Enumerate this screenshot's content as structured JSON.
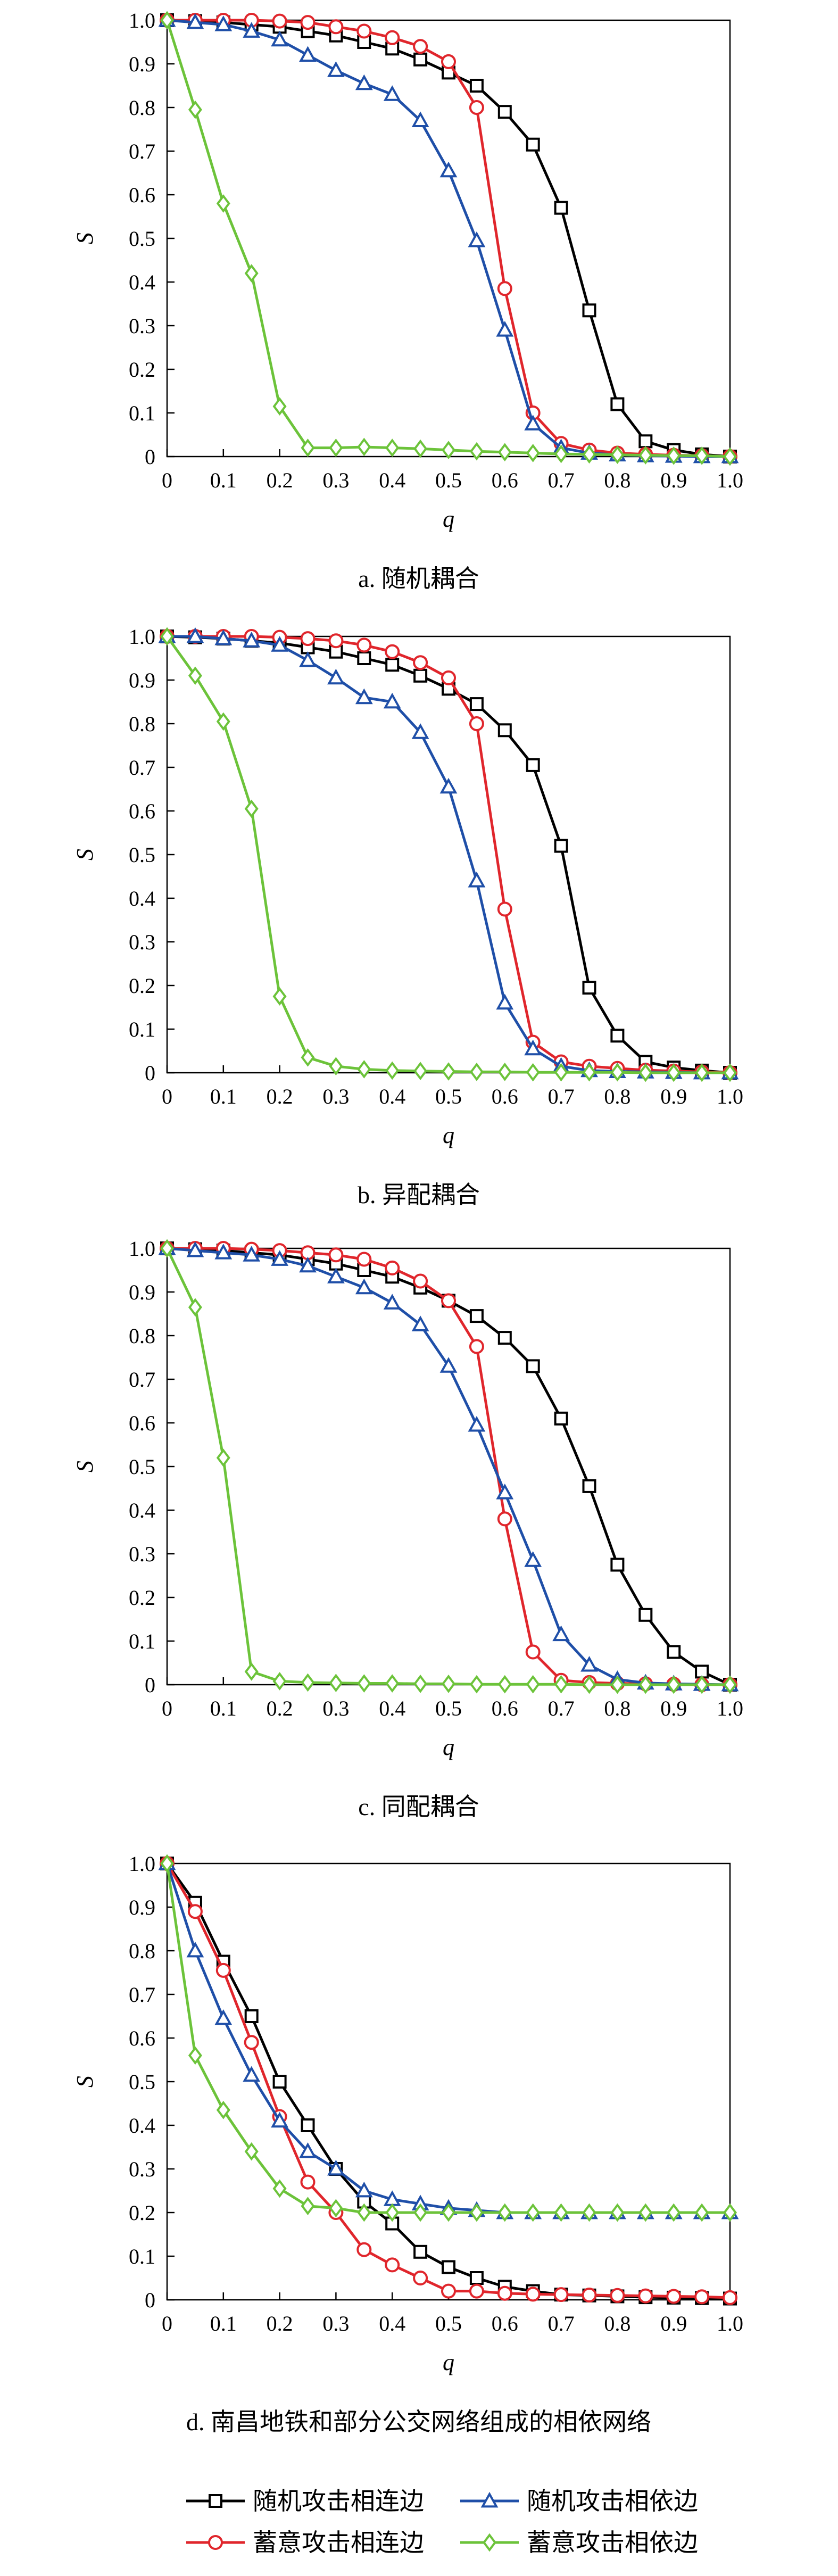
{
  "legend": {
    "entries": [
      {
        "label": "随机攻击相连边",
        "color": "#000000",
        "marker": "square"
      },
      {
        "label": "随机攻击相依边",
        "color": "#1f4fa8",
        "marker": "triangle"
      },
      {
        "label": "蓄意攻击相连边",
        "color": "#e0262c",
        "marker": "circle"
      },
      {
        "label": "蓄意攻击相依边",
        "color": "#6cc33a",
        "marker": "diamond"
      }
    ],
    "placement": "bottom-center"
  },
  "chart_data": [
    {
      "type": "line",
      "caption": "a. 随机耦合",
      "xlabel": "q",
      "ylabel": "S",
      "xlim": [
        0,
        1
      ],
      "ylim": [
        0,
        1
      ],
      "xticks": [
        "0",
        "0.1",
        "0.2",
        "0.3",
        "0.4",
        "0.5",
        "0.6",
        "0.7",
        "0.8",
        "0.9",
        "1.0"
      ],
      "yticks": [
        "0",
        "0.1",
        "0.2",
        "0.3",
        "0.4",
        "0.5",
        "0.6",
        "0.7",
        "0.8",
        "0.9",
        "1.0"
      ],
      "x": [
        0,
        0.05,
        0.1,
        0.15,
        0.2,
        0.25,
        0.3,
        0.35,
        0.4,
        0.45,
        0.5,
        0.55,
        0.6,
        0.65,
        0.7,
        0.75,
        0.8,
        0.85,
        0.9,
        0.95,
        1.0
      ],
      "series": [
        {
          "name": "随机攻击相连边",
          "values": [
            1.0,
            0.998,
            0.995,
            0.99,
            0.985,
            0.975,
            0.965,
            0.95,
            0.935,
            0.91,
            0.88,
            0.85,
            0.79,
            0.715,
            0.57,
            0.335,
            0.12,
            0.035,
            0.015,
            0.005,
            0.0
          ]
        },
        {
          "name": "蓄意攻击相连边",
          "values": [
            1.0,
            1.0,
            1.0,
            1.0,
            0.998,
            0.995,
            0.985,
            0.975,
            0.96,
            0.94,
            0.905,
            0.8,
            0.385,
            0.1,
            0.03,
            0.015,
            0.008,
            0.005,
            0.003,
            0.002,
            0.0
          ]
        },
        {
          "name": "随机攻击相依边",
          "values": [
            1.0,
            0.995,
            0.99,
            0.975,
            0.955,
            0.92,
            0.885,
            0.855,
            0.83,
            0.77,
            0.655,
            0.495,
            0.29,
            0.075,
            0.02,
            0.008,
            0.004,
            0.002,
            0.001,
            0.0,
            0.0
          ]
        },
        {
          "name": "蓄意攻击相依边",
          "values": [
            1.0,
            0.795,
            0.58,
            0.42,
            0.115,
            0.02,
            0.02,
            0.022,
            0.02,
            0.018,
            0.015,
            0.012,
            0.01,
            0.008,
            0.006,
            0.005,
            0.004,
            0.003,
            0.002,
            0.002,
            0.0
          ]
        }
      ]
    },
    {
      "type": "line",
      "caption": "b. 异配耦合",
      "xlabel": "q",
      "ylabel": "S",
      "xlim": [
        0,
        1
      ],
      "ylim": [
        0,
        1
      ],
      "xticks": [
        "0",
        "0.1",
        "0.2",
        "0.3",
        "0.4",
        "0.5",
        "0.6",
        "0.7",
        "0.8",
        "0.9",
        "1.0"
      ],
      "yticks": [
        "0",
        "0.1",
        "0.2",
        "0.3",
        "0.4",
        "0.5",
        "0.6",
        "0.7",
        "0.8",
        "0.9",
        "1.0"
      ],
      "x": [
        0,
        0.05,
        0.1,
        0.15,
        0.2,
        0.25,
        0.3,
        0.35,
        0.4,
        0.45,
        0.5,
        0.55,
        0.6,
        0.65,
        0.7,
        0.75,
        0.8,
        0.85,
        0.9,
        0.95,
        1.0
      ],
      "series": [
        {
          "name": "随机攻击相连边",
          "values": [
            1.0,
            0.998,
            0.995,
            0.99,
            0.985,
            0.975,
            0.965,
            0.95,
            0.935,
            0.91,
            0.88,
            0.845,
            0.785,
            0.705,
            0.52,
            0.195,
            0.085,
            0.025,
            0.012,
            0.005,
            0.0
          ]
        },
        {
          "name": "蓄意攻击相连边",
          "values": [
            1.0,
            1.0,
            1.0,
            1.0,
            0.998,
            0.995,
            0.99,
            0.98,
            0.965,
            0.94,
            0.905,
            0.8,
            0.375,
            0.07,
            0.025,
            0.015,
            0.01,
            0.006,
            0.004,
            0.002,
            0.0
          ]
        },
        {
          "name": "随机攻击相依边",
          "values": [
            1.0,
            1.0,
            0.995,
            0.99,
            0.98,
            0.945,
            0.905,
            0.86,
            0.85,
            0.78,
            0.655,
            0.44,
            0.16,
            0.055,
            0.015,
            0.005,
            0.003,
            0.002,
            0.001,
            0.0,
            0.0
          ]
        },
        {
          "name": "蓄意攻击相依边",
          "values": [
            1.0,
            0.91,
            0.805,
            0.605,
            0.175,
            0.035,
            0.015,
            0.008,
            0.005,
            0.004,
            0.003,
            0.002,
            0.002,
            0.001,
            0.001,
            0.001,
            0.001,
            0.0,
            0.0,
            0.0,
            0.0
          ]
        }
      ]
    },
    {
      "type": "line",
      "caption": "c. 同配耦合",
      "xlabel": "q",
      "ylabel": "S",
      "xlim": [
        0,
        1
      ],
      "ylim": [
        0,
        1
      ],
      "xticks": [
        "0",
        "0.1",
        "0.2",
        "0.3",
        "0.4",
        "0.5",
        "0.6",
        "0.7",
        "0.8",
        "0.9",
        "1.0"
      ],
      "yticks": [
        "0",
        "0.1",
        "0.2",
        "0.3",
        "0.4",
        "0.5",
        "0.6",
        "0.7",
        "0.8",
        "0.9",
        "1.0"
      ],
      "x": [
        0,
        0.05,
        0.1,
        0.15,
        0.2,
        0.25,
        0.3,
        0.35,
        0.4,
        0.45,
        0.5,
        0.55,
        0.6,
        0.65,
        0.7,
        0.75,
        0.8,
        0.85,
        0.9,
        0.95,
        1.0
      ],
      "series": [
        {
          "name": "随机攻击相连边",
          "values": [
            1.0,
            0.998,
            0.995,
            0.99,
            0.985,
            0.975,
            0.965,
            0.95,
            0.935,
            0.91,
            0.88,
            0.845,
            0.795,
            0.73,
            0.61,
            0.455,
            0.275,
            0.16,
            0.075,
            0.03,
            0.0
          ]
        },
        {
          "name": "蓄意攻击相连边",
          "values": [
            1.0,
            1.0,
            1.0,
            0.998,
            0.995,
            0.99,
            0.985,
            0.975,
            0.955,
            0.925,
            0.88,
            0.775,
            0.38,
            0.075,
            0.01,
            0.005,
            0.003,
            0.002,
            0.001,
            0.0,
            0.0
          ]
        },
        {
          "name": "随机攻击相依边",
          "values": [
            1.0,
            0.995,
            0.99,
            0.985,
            0.975,
            0.96,
            0.935,
            0.91,
            0.875,
            0.825,
            0.73,
            0.595,
            0.44,
            0.285,
            0.115,
            0.045,
            0.012,
            0.004,
            0.002,
            0.001,
            0.0
          ]
        },
        {
          "name": "蓄意攻击相依边",
          "values": [
            1.0,
            0.865,
            0.52,
            0.03,
            0.008,
            0.005,
            0.004,
            0.003,
            0.003,
            0.002,
            0.002,
            0.001,
            0.001,
            0.001,
            0.001,
            0.0,
            0.0,
            0.0,
            0.0,
            0.0,
            0.0
          ]
        }
      ]
    },
    {
      "type": "line",
      "caption": "d. 南昌地铁和部分公交网络组成的相依网络",
      "xlabel": "q",
      "ylabel": "S",
      "xlim": [
        0,
        1
      ],
      "ylim": [
        0,
        1
      ],
      "xticks": [
        "0",
        "0.1",
        "0.2",
        "0.3",
        "0.4",
        "0.5",
        "0.6",
        "0.7",
        "0.8",
        "0.9",
        "1.0"
      ],
      "yticks": [
        "0",
        "0.1",
        "0.2",
        "0.3",
        "0.4",
        "0.5",
        "0.6",
        "0.7",
        "0.8",
        "0.9",
        "1.0"
      ],
      "x": [
        0,
        0.05,
        0.1,
        0.15,
        0.2,
        0.25,
        0.3,
        0.35,
        0.4,
        0.45,
        0.5,
        0.55,
        0.6,
        0.65,
        0.7,
        0.75,
        0.8,
        0.85,
        0.9,
        0.95,
        1.0
      ],
      "series": [
        {
          "name": "随机攻击相连边",
          "values": [
            1.0,
            0.91,
            0.775,
            0.65,
            0.5,
            0.4,
            0.3,
            0.225,
            0.175,
            0.11,
            0.075,
            0.05,
            0.03,
            0.02,
            0.012,
            0.01,
            0.008,
            0.006,
            0.005,
            0.004,
            0.003
          ]
        },
        {
          "name": "蓄意攻击相连边",
          "values": [
            1.0,
            0.89,
            0.755,
            0.59,
            0.42,
            0.27,
            0.2,
            0.115,
            0.08,
            0.05,
            0.02,
            0.02,
            0.015,
            0.013,
            0.012,
            0.011,
            0.01,
            0.009,
            0.008,
            0.007,
            0.005
          ]
        },
        {
          "name": "随机攻击相依边",
          "values": [
            1.0,
            0.8,
            0.645,
            0.515,
            0.41,
            0.34,
            0.3,
            0.25,
            0.23,
            0.22,
            0.21,
            0.205,
            0.2,
            0.2,
            0.2,
            0.2,
            0.2,
            0.2,
            0.2,
            0.2,
            0.2
          ]
        },
        {
          "name": "蓄意攻击相依边",
          "values": [
            1.0,
            0.56,
            0.435,
            0.34,
            0.255,
            0.215,
            0.21,
            0.2,
            0.2,
            0.2,
            0.2,
            0.2,
            0.2,
            0.2,
            0.2,
            0.2,
            0.2,
            0.2,
            0.2,
            0.2,
            0.2
          ]
        }
      ]
    }
  ]
}
